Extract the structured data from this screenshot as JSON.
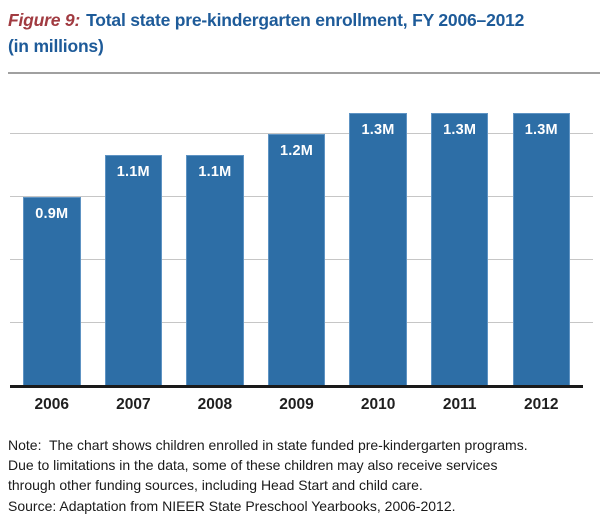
{
  "title": {
    "figure_label": "Figure 9:",
    "line1": "Total state pre-kindergarten enrollment, FY 2006–2012",
    "line2": "(in millions)"
  },
  "colors": {
    "figure_label": "#A13B41",
    "title_text": "#1E5B99",
    "bar": "#2D6EA6",
    "bar_border": "#5E93C3",
    "bar_label": "#FFFFFF",
    "gridline": "#C6C6C6",
    "axis_line": "#1A1A1A",
    "year_label": "#1F1F1F",
    "note_text": "#1A1A1A",
    "divider": "#A0A0A0"
  },
  "chart_data": {
    "type": "bar",
    "title": "Figure 9: Total state pre-kindergarten enrollment, FY 2006–2012 (in millions)",
    "unit": "millions",
    "categories": [
      "2006",
      "2007",
      "2008",
      "2009",
      "2010",
      "2011",
      "2012"
    ],
    "values": [
      0.9,
      1.1,
      1.1,
      1.2,
      1.3,
      1.3,
      1.3
    ],
    "bar_labels": [
      "0.9M",
      "1.1M",
      "1.1M",
      "1.2M",
      "1.3M",
      "1.3M",
      "1.3M"
    ],
    "xlabel": "",
    "ylabel": "",
    "ylim": [
      0,
      1.4
    ],
    "gridlines": [
      0.3,
      0.6,
      0.9,
      1.2
    ],
    "grid": true,
    "legend_position": "none",
    "y_axis_tick_labels": "hidden"
  },
  "notes": {
    "lines": [
      "Note:  The chart shows children enrolled in state funded pre-kindergarten programs.",
      "Due to limitations in the data, some of these children may also receive services",
      "through other funding sources, including Head Start and child care."
    ],
    "source": "Source: Adaptation from NIEER State Preschool Yearbooks, 2006-2012."
  }
}
